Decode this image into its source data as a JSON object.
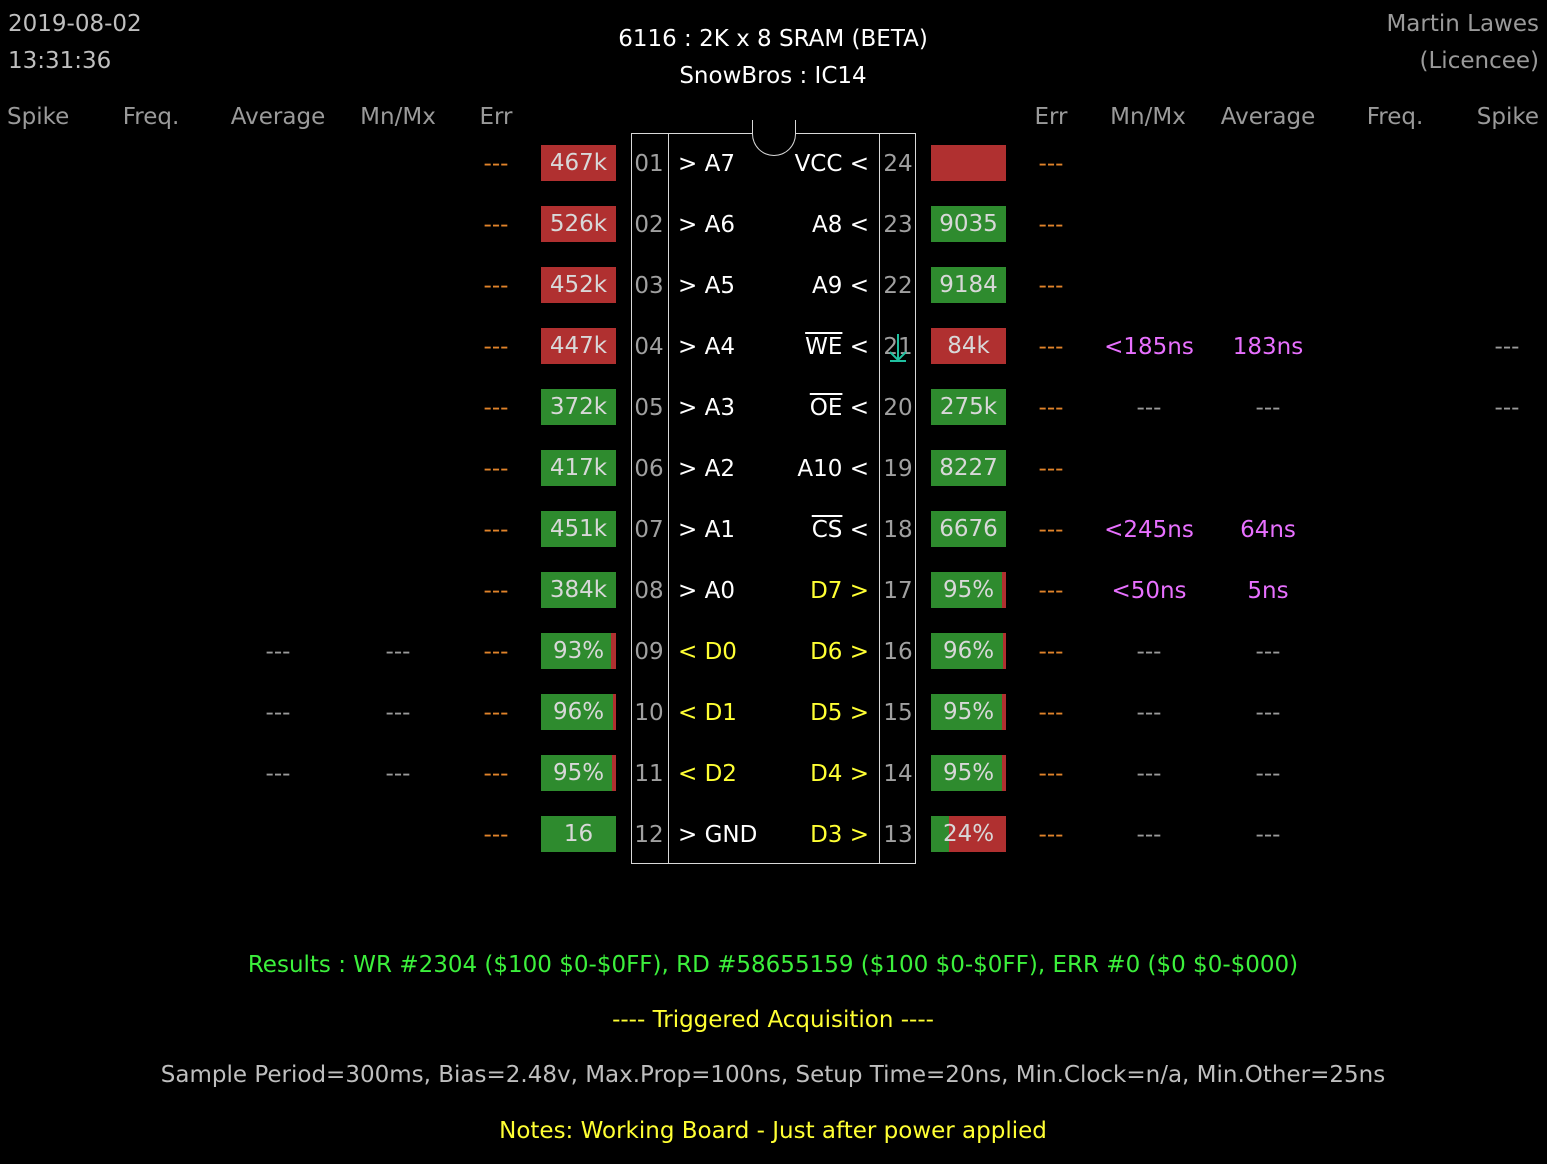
{
  "header": {
    "date": "2019-08-02",
    "time": "13:31:36",
    "title": "6116  :  2K x 8 SRAM (BETA)",
    "subtitle": "SnowBros : IC14",
    "licensee_name": "Martin Lawes",
    "licensee_label": "(Licencee)"
  },
  "columns_left": [
    "Spike",
    "Freq.",
    "Average",
    "Mn/Mx",
    "Err"
  ],
  "columns_right": [
    "Err",
    "Mn/Mx",
    "Average",
    "Freq.",
    "Spike"
  ],
  "colors": {
    "green": "#2e8b2e",
    "red": "#b03030",
    "orange": "#e0832a",
    "magenta": "#e870ff",
    "yellow": "#ffff33",
    "results": "#3cf03c"
  },
  "left_pins": [
    {
      "num": "01",
      "label": "> A7",
      "box": "467k",
      "box_color": "red",
      "err": "---",
      "mnmx": "",
      "avg": ""
    },
    {
      "num": "02",
      "label": "> A6",
      "box": "526k",
      "box_color": "red",
      "err": "---",
      "mnmx": "",
      "avg": ""
    },
    {
      "num": "03",
      "label": "> A5",
      "box": "452k",
      "box_color": "red",
      "err": "---",
      "mnmx": "",
      "avg": ""
    },
    {
      "num": "04",
      "label": "> A4",
      "box": "447k",
      "box_color": "red",
      "err": "---",
      "mnmx": "",
      "avg": ""
    },
    {
      "num": "05",
      "label": "> A3",
      "box": "372k",
      "box_color": "green",
      "err": "---",
      "mnmx": "",
      "avg": ""
    },
    {
      "num": "06",
      "label": "> A2",
      "box": "417k",
      "box_color": "green",
      "err": "---",
      "mnmx": "",
      "avg": ""
    },
    {
      "num": "07",
      "label": "> A1",
      "box": "451k",
      "box_color": "green",
      "err": "---",
      "mnmx": "",
      "avg": ""
    },
    {
      "num": "08",
      "label": "> A0",
      "box": "384k",
      "box_color": "green",
      "err": "---",
      "mnmx": "",
      "avg": ""
    },
    {
      "num": "09",
      "label": "< D0",
      "box": "93%",
      "box_color": "green",
      "pct": 93,
      "err": "---",
      "mnmx": "---",
      "avg": "---"
    },
    {
      "num": "10",
      "label": "< D1",
      "box": "96%",
      "box_color": "green",
      "pct": 96,
      "err": "---",
      "mnmx": "---",
      "avg": "---"
    },
    {
      "num": "11",
      "label": "< D2",
      "box": "95%",
      "box_color": "green",
      "pct": 95,
      "err": "---",
      "mnmx": "---",
      "avg": "---"
    },
    {
      "num": "12",
      "label": "> GND",
      "box": "16",
      "box_color": "green",
      "err": "---",
      "mnmx": "",
      "avg": ""
    }
  ],
  "right_pins": [
    {
      "num": "24",
      "label": "VCC <",
      "overline": false,
      "box": "",
      "box_color": "red",
      "err": "---",
      "mnmx": "",
      "avg": "",
      "spike": ""
    },
    {
      "num": "23",
      "label": "A8 <",
      "overline": false,
      "box": "9035",
      "box_color": "green",
      "err": "---",
      "mnmx": "",
      "avg": "",
      "spike": ""
    },
    {
      "num": "22",
      "label": "A9 <",
      "overline": false,
      "box": "9184",
      "box_color": "green",
      "err": "---",
      "mnmx": "",
      "avg": "",
      "spike": ""
    },
    {
      "num": "21",
      "label": "WE",
      "overline": true,
      "suffix": " <",
      "box": "84k",
      "box_color": "red",
      "err": "---",
      "mnmx": "<185ns",
      "avg": "183ns",
      "spike": "---"
    },
    {
      "num": "20",
      "label": "OE",
      "overline": true,
      "suffix": " <",
      "box": "275k",
      "box_color": "green",
      "err": "---",
      "mnmx": "---",
      "avg": "---",
      "spike": "---"
    },
    {
      "num": "19",
      "label": "A10 <",
      "overline": false,
      "box": "8227",
      "box_color": "green",
      "err": "---",
      "mnmx": "",
      "avg": "",
      "spike": ""
    },
    {
      "num": "18",
      "label": "CS",
      "overline": true,
      "suffix": " <",
      "box": "6676",
      "box_color": "green",
      "err": "---",
      "mnmx": "<245ns",
      "avg": "64ns",
      "spike": ""
    },
    {
      "num": "17",
      "label": "D7 >",
      "overline": false,
      "box": "95%",
      "box_color": "green",
      "pct": 95,
      "err": "---",
      "mnmx": "<50ns",
      "avg": "5ns",
      "spike": ""
    },
    {
      "num": "16",
      "label": "D6 >",
      "overline": false,
      "box": "96%",
      "box_color": "green",
      "pct": 96,
      "err": "---",
      "mnmx": "---",
      "avg": "---",
      "spike": ""
    },
    {
      "num": "15",
      "label": "D5 >",
      "overline": false,
      "box": "95%",
      "box_color": "green",
      "pct": 95,
      "err": "---",
      "mnmx": "---",
      "avg": "---",
      "spike": ""
    },
    {
      "num": "14",
      "label": "D4 >",
      "overline": false,
      "box": "95%",
      "box_color": "green",
      "pct": 95,
      "err": "---",
      "mnmx": "---",
      "avg": "---",
      "spike": ""
    },
    {
      "num": "13",
      "label": "D3 >",
      "overline": false,
      "box": "24%",
      "box_color": "green",
      "pct": 24,
      "err": "---",
      "mnmx": "---",
      "avg": "---",
      "spike": ""
    }
  ],
  "pin21_icon": "trigger-falling-edge-icon",
  "footer": {
    "results": "Results  :  WR #2304 ($100  $0-$0FF),  RD #58655159 ($100  $0-$0FF),  ERR #0 ($0  $0-$000)",
    "acquisition": "----  Triggered Acquisition  ----",
    "params": "Sample Period=300ms,  Bias=2.48v,  Max.Prop=100ns,  Setup Time=20ns,  Min.Clock=n/a,  Min.Other=25ns",
    "notes": "Notes:  Working Board - Just after power applied"
  }
}
